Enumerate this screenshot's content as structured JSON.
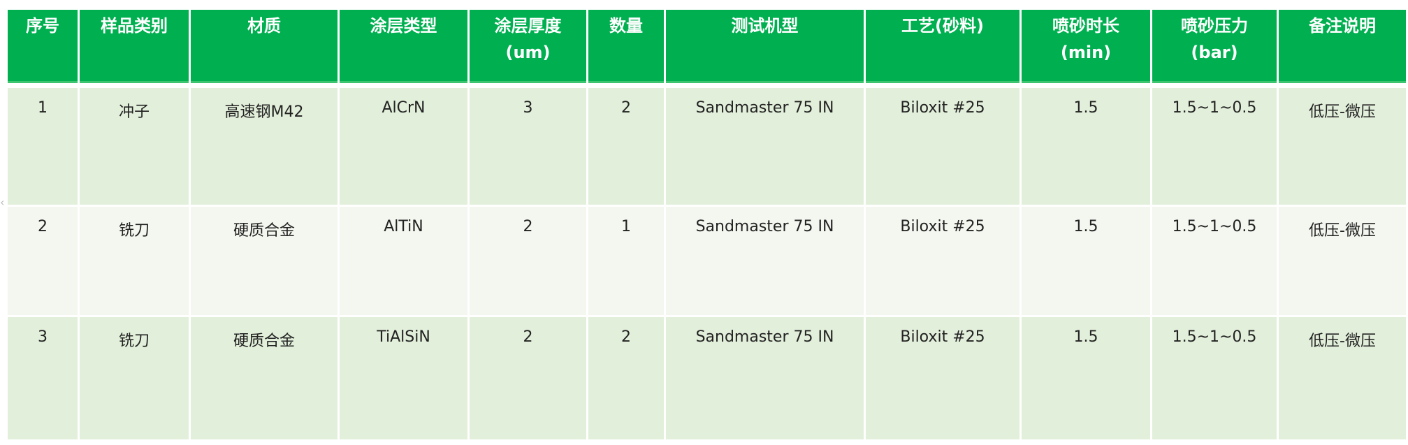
{
  "table": {
    "headers": [
      {
        "line1": "序号",
        "line2": ""
      },
      {
        "line1": "样品类别",
        "line2": ""
      },
      {
        "line1": "材质",
        "line2": ""
      },
      {
        "line1": "涂层类型",
        "line2": ""
      },
      {
        "line1": "涂层厚度",
        "line2": "(um)"
      },
      {
        "line1": "数量",
        "line2": ""
      },
      {
        "line1": "测试机型",
        "line2": ""
      },
      {
        "line1": "工艺(砂料)",
        "line2": ""
      },
      {
        "line1": "喷砂时长",
        "line2": "(min)"
      },
      {
        "line1": "喷砂压力",
        "line2": "(bar)"
      },
      {
        "line1": "备注说明",
        "line2": ""
      }
    ],
    "rows": [
      [
        "1",
        "冲子",
        "高速钢M42",
        "AlCrN",
        "3",
        "2",
        "Sandmaster 75 IN",
        "Biloxit #25",
        "1.5",
        "1.5~1~0.5",
        "低压-微压"
      ],
      [
        "2",
        "铣刀",
        "硬质合金",
        "AlTiN",
        "2",
        "1",
        "Sandmaster 75 IN",
        "Biloxit #25",
        "1.5",
        "1.5~1~0.5",
        "低压-微压"
      ],
      [
        "3",
        "铣刀",
        "硬质合金",
        "TiAlSiN",
        "2",
        "2",
        "Sandmaster 75 IN",
        "Biloxit #25",
        "1.5",
        "1.5~1~0.5",
        "低压-微压"
      ]
    ]
  },
  "colors": {
    "header_bg": "#00b050",
    "row_odd": "#e2efda",
    "row_even": "#f3f7ef"
  }
}
